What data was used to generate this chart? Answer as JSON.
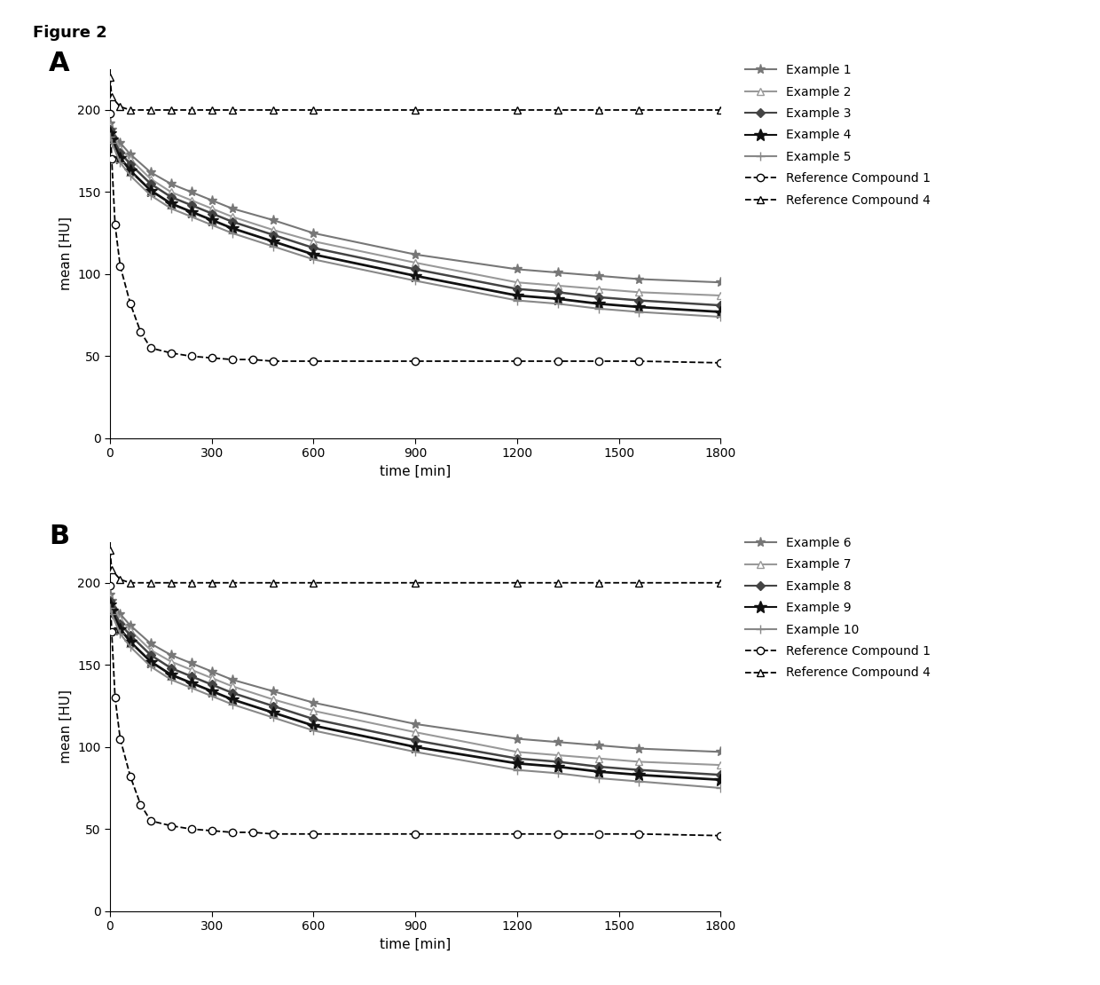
{
  "title": "Figure 2",
  "panel_A_label": "A",
  "panel_B_label": "B",
  "xlabel": "time [min]",
  "ylabel": "mean [HU]",
  "xlim": [
    0,
    1800
  ],
  "ylim": [
    0,
    225
  ],
  "xticks": [
    0,
    300,
    600,
    900,
    1200,
    1500,
    1800
  ],
  "yticks": [
    0,
    50,
    100,
    150,
    200
  ],
  "ref1_x": [
    0,
    5,
    15,
    30,
    60,
    90,
    120,
    180,
    240,
    300,
    360,
    420,
    480,
    600,
    900,
    1200,
    1320,
    1440,
    1560,
    1800
  ],
  "ref1_y": [
    198,
    170,
    130,
    105,
    82,
    65,
    55,
    52,
    50,
    49,
    48,
    48,
    47,
    47,
    47,
    47,
    47,
    47,
    47,
    46
  ],
  "ref4_x": [
    0,
    5,
    30,
    60,
    120,
    180,
    240,
    300,
    360,
    480,
    600,
    900,
    1200,
    1320,
    1440,
    1560,
    1800
  ],
  "ref4_y": [
    220,
    208,
    202,
    200,
    200,
    200,
    200,
    200,
    200,
    200,
    200,
    200,
    200,
    200,
    200,
    200,
    200
  ],
  "panelA": {
    "series": [
      {
        "name": "Example 1",
        "x": [
          0,
          5,
          30,
          60,
          120,
          180,
          240,
          300,
          360,
          480,
          600,
          900,
          1200,
          1320,
          1440,
          1560,
          1800
        ],
        "y": [
          192,
          188,
          180,
          173,
          162,
          155,
          150,
          145,
          140,
          133,
          125,
          112,
          103,
          101,
          99,
          97,
          95
        ],
        "marker": "*",
        "markersize": 8,
        "lw": 1.5,
        "color": "#777777",
        "mfc": "auto"
      },
      {
        "name": "Example 2",
        "x": [
          0,
          5,
          30,
          60,
          120,
          180,
          240,
          300,
          360,
          480,
          600,
          900,
          1200,
          1320,
          1440,
          1560,
          1800
        ],
        "y": [
          190,
          186,
          177,
          170,
          158,
          150,
          145,
          140,
          135,
          127,
          120,
          107,
          95,
          93,
          91,
          89,
          87
        ],
        "marker": "^",
        "markersize": 6,
        "lw": 1.5,
        "color": "#999999",
        "mfc": "white"
      },
      {
        "name": "Example 3",
        "x": [
          0,
          5,
          30,
          60,
          120,
          180,
          240,
          300,
          360,
          480,
          600,
          900,
          1200,
          1320,
          1440,
          1560,
          1800
        ],
        "y": [
          188,
          184,
          174,
          167,
          155,
          147,
          142,
          137,
          132,
          124,
          116,
          103,
          91,
          89,
          86,
          84,
          81
        ],
        "marker": "D",
        "markersize": 5,
        "lw": 1.8,
        "color": "#444444",
        "mfc": "#444444"
      },
      {
        "name": "Example 4",
        "x": [
          0,
          5,
          30,
          60,
          120,
          180,
          240,
          300,
          360,
          480,
          600,
          900,
          1200,
          1320,
          1440,
          1560,
          1800
        ],
        "y": [
          186,
          182,
          171,
          163,
          151,
          143,
          138,
          133,
          128,
          120,
          112,
          99,
          87,
          85,
          82,
          80,
          77
        ],
        "marker": "*",
        "markersize": 10,
        "lw": 2.0,
        "color": "#111111",
        "mfc": "#111111"
      },
      {
        "name": "Example 5",
        "x": [
          0,
          5,
          30,
          60,
          120,
          180,
          240,
          300,
          360,
          480,
          600,
          900,
          1200,
          1320,
          1440,
          1560,
          1800
        ],
        "y": [
          184,
          180,
          168,
          160,
          148,
          140,
          135,
          130,
          125,
          117,
          109,
          96,
          84,
          82,
          79,
          77,
          74
        ],
        "marker": "+",
        "markersize": 7,
        "lw": 1.5,
        "color": "#888888",
        "mfc": "#888888"
      }
    ]
  },
  "panelB": {
    "series": [
      {
        "name": "Example 6",
        "x": [
          0,
          5,
          30,
          60,
          120,
          180,
          240,
          300,
          360,
          480,
          600,
          900,
          1200,
          1320,
          1440,
          1560,
          1800
        ],
        "y": [
          193,
          189,
          181,
          174,
          163,
          156,
          151,
          146,
          141,
          134,
          127,
          114,
          105,
          103,
          101,
          99,
          97
        ],
        "marker": "*",
        "markersize": 8,
        "lw": 1.5,
        "color": "#777777",
        "mfc": "auto"
      },
      {
        "name": "Example 7",
        "x": [
          0,
          5,
          30,
          60,
          120,
          180,
          240,
          300,
          360,
          480,
          600,
          900,
          1200,
          1320,
          1440,
          1560,
          1800
        ],
        "y": [
          191,
          187,
          178,
          171,
          159,
          152,
          147,
          142,
          137,
          129,
          122,
          109,
          97,
          95,
          93,
          91,
          89
        ],
        "marker": "^",
        "markersize": 6,
        "lw": 1.5,
        "color": "#999999",
        "mfc": "white"
      },
      {
        "name": "Example 8",
        "x": [
          0,
          5,
          30,
          60,
          120,
          180,
          240,
          300,
          360,
          480,
          600,
          900,
          1200,
          1320,
          1440,
          1560,
          1800
        ],
        "y": [
          189,
          185,
          175,
          168,
          156,
          148,
          143,
          138,
          133,
          125,
          117,
          104,
          93,
          91,
          88,
          86,
          83
        ],
        "marker": "D",
        "markersize": 5,
        "lw": 1.8,
        "color": "#444444",
        "mfc": "#444444"
      },
      {
        "name": "Example 9",
        "x": [
          0,
          5,
          30,
          60,
          120,
          180,
          240,
          300,
          360,
          480,
          600,
          900,
          1200,
          1320,
          1440,
          1560,
          1800
        ],
        "y": [
          187,
          183,
          172,
          164,
          152,
          144,
          139,
          134,
          129,
          121,
          113,
          100,
          90,
          88,
          85,
          83,
          80
        ],
        "marker": "*",
        "markersize": 10,
        "lw": 2.0,
        "color": "#111111",
        "mfc": "#111111"
      },
      {
        "name": "Example 10",
        "x": [
          0,
          5,
          30,
          60,
          120,
          180,
          240,
          300,
          360,
          480,
          600,
          900,
          1200,
          1320,
          1440,
          1560,
          1800
        ],
        "y": [
          185,
          181,
          169,
          161,
          149,
          141,
          136,
          131,
          126,
          118,
          110,
          97,
          86,
          84,
          81,
          79,
          75
        ],
        "marker": "+",
        "markersize": 7,
        "lw": 1.5,
        "color": "#888888",
        "mfc": "#888888"
      }
    ]
  },
  "legend_A": [
    "Example 1",
    "Example 2",
    "Example 3",
    "Example 4",
    "Example 5",
    "Reference Compound 1",
    "Reference Compound 4"
  ],
  "legend_B": [
    "Example 6",
    "Example 7",
    "Example 8",
    "Example 9",
    "Example 10",
    "Reference Compound 1",
    "Reference Compound 4"
  ],
  "background_color": "#ffffff",
  "text_color": "#000000",
  "fontsize_title": 13,
  "fontsize_label": 11,
  "fontsize_tick": 10,
  "fontsize_legend": 10,
  "fontsize_panel": 22
}
